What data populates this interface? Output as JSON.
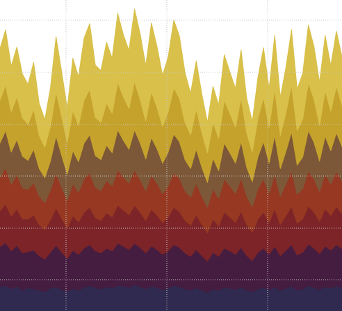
{
  "chart_data": {
    "type": "area",
    "stacked": true,
    "title": "",
    "xlabel": "",
    "ylabel": "",
    "grid": true,
    "legend": "none",
    "x": [
      0,
      8,
      16,
      24,
      32,
      40,
      48,
      56,
      64,
      72,
      80,
      88,
      96,
      104,
      112,
      120,
      128,
      136,
      144,
      152,
      160,
      168,
      176,
      184,
      192,
      200,
      208,
      216,
      224,
      232,
      240,
      248,
      256,
      264,
      272,
      280,
      288,
      296,
      304,
      312,
      320,
      328,
      336,
      344,
      352,
      360,
      368,
      376,
      384,
      392,
      400,
      408,
      416,
      424,
      432,
      440,
      448,
      456,
      464,
      472,
      480,
      488
    ],
    "series": [
      {
        "color": "#312a50",
        "values": [
          35,
          37,
          32,
          36,
          30,
          34,
          32,
          30,
          28,
          33,
          35,
          31,
          28,
          33,
          30,
          34,
          37,
          34,
          32,
          35,
          33,
          37,
          36,
          34,
          38,
          35,
          32,
          36,
          34,
          31,
          33,
          37,
          35,
          32,
          30,
          34,
          30,
          27,
          32,
          30,
          34,
          33,
          31,
          35,
          30,
          28,
          32,
          34,
          31,
          35,
          30,
          33,
          36,
          30,
          32,
          37,
          34,
          31,
          35,
          33,
          36,
          34
        ]
      },
      {
        "color": "#451d40",
        "values": [
          58,
          62,
          55,
          59,
          54,
          52,
          56,
          50,
          47,
          52,
          60,
          54,
          48,
          55,
          52,
          57,
          59,
          53,
          52,
          56,
          54,
          61,
          58,
          55,
          60,
          57,
          52,
          58,
          55,
          51,
          54,
          59,
          57,
          52,
          49,
          55,
          50,
          45,
          53,
          49,
          57,
          54,
          51,
          57,
          50,
          45,
          53,
          57,
          51,
          59,
          50,
          55,
          60,
          51,
          53,
          60,
          57,
          52,
          59,
          55,
          60,
          56
        ]
      },
      {
        "color": "#7d2428",
        "values": [
          52,
          56,
          50,
          53,
          49,
          47,
          51,
          45,
          43,
          47,
          54,
          49,
          44,
          50,
          47,
          52,
          54,
          48,
          47,
          51,
          49,
          55,
          52,
          50,
          55,
          51,
          47,
          53,
          50,
          46,
          49,
          54,
          52,
          47,
          45,
          50,
          45,
          41,
          48,
          44,
          52,
          49,
          46,
          52,
          45,
          41,
          48,
          52,
          46,
          54,
          45,
          50,
          55,
          46,
          48,
          55,
          52,
          47,
          54,
          50,
          55,
          51
        ]
      },
      {
        "color": "#963822",
        "values": [
          48,
          52,
          46,
          49,
          45,
          43,
          47,
          41,
          39,
          43,
          50,
          45,
          40,
          46,
          43,
          48,
          50,
          44,
          43,
          47,
          45,
          51,
          48,
          46,
          51,
          47,
          43,
          49,
          46,
          42,
          45,
          50,
          48,
          43,
          41,
          46,
          41,
          37,
          44,
          40,
          48,
          45,
          42,
          48,
          41,
          37,
          44,
          48,
          42,
          50,
          41,
          46,
          51,
          42,
          44,
          51,
          48,
          43,
          50,
          46,
          51,
          47
        ]
      },
      {
        "color": "#7c5838",
        "values": [
          50,
          54,
          47,
          51,
          46,
          42,
          48,
          40,
          36,
          42,
          54,
          46,
          38,
          48,
          44,
          52,
          55,
          46,
          45,
          51,
          48,
          58,
          53,
          49,
          58,
          53,
          46,
          55,
          50,
          44,
          49,
          56,
          53,
          45,
          41,
          49,
          42,
          36,
          44,
          40,
          52,
          48,
          44,
          53,
          42,
          36,
          46,
          54,
          44,
          56,
          40,
          47,
          57,
          42,
          46,
          58,
          53,
          44,
          55,
          48,
          56,
          50
        ]
      },
      {
        "color": "#c5a22c",
        "values": [
          62,
          66,
          58,
          62,
          56,
          52,
          58,
          48,
          44,
          50,
          64,
          56,
          46,
          58,
          53,
          62,
          66,
          55,
          54,
          61,
          57,
          69,
          63,
          59,
          70,
          63,
          55,
          66,
          60,
          53,
          58,
          67,
          63,
          54,
          49,
          58,
          50,
          43,
          52,
          47,
          62,
          57,
          52,
          63,
          50,
          43,
          55,
          64,
          52,
          67,
          48,
          56,
          68,
          50,
          55,
          69,
          63,
          52,
          66,
          57,
          67,
          60
        ]
      },
      {
        "color": "#d8c04a",
        "values": [
          75,
          80,
          66,
          72,
          63,
          58,
          68,
          46,
          40,
          56,
          80,
          65,
          50,
          76,
          70,
          90,
          95,
          76,
          75,
          88,
          80,
          100,
          90,
          84,
          105,
          95,
          80,
          100,
          88,
          74,
          80,
          98,
          90,
          72,
          60,
          70,
          56,
          44,
          52,
          48,
          66,
          60,
          56,
          70,
          50,
          44,
          60,
          72,
          56,
          78,
          55,
          66,
          80,
          60,
          66,
          84,
          76,
          62,
          80,
          66,
          80,
          70
        ]
      }
    ]
  }
}
